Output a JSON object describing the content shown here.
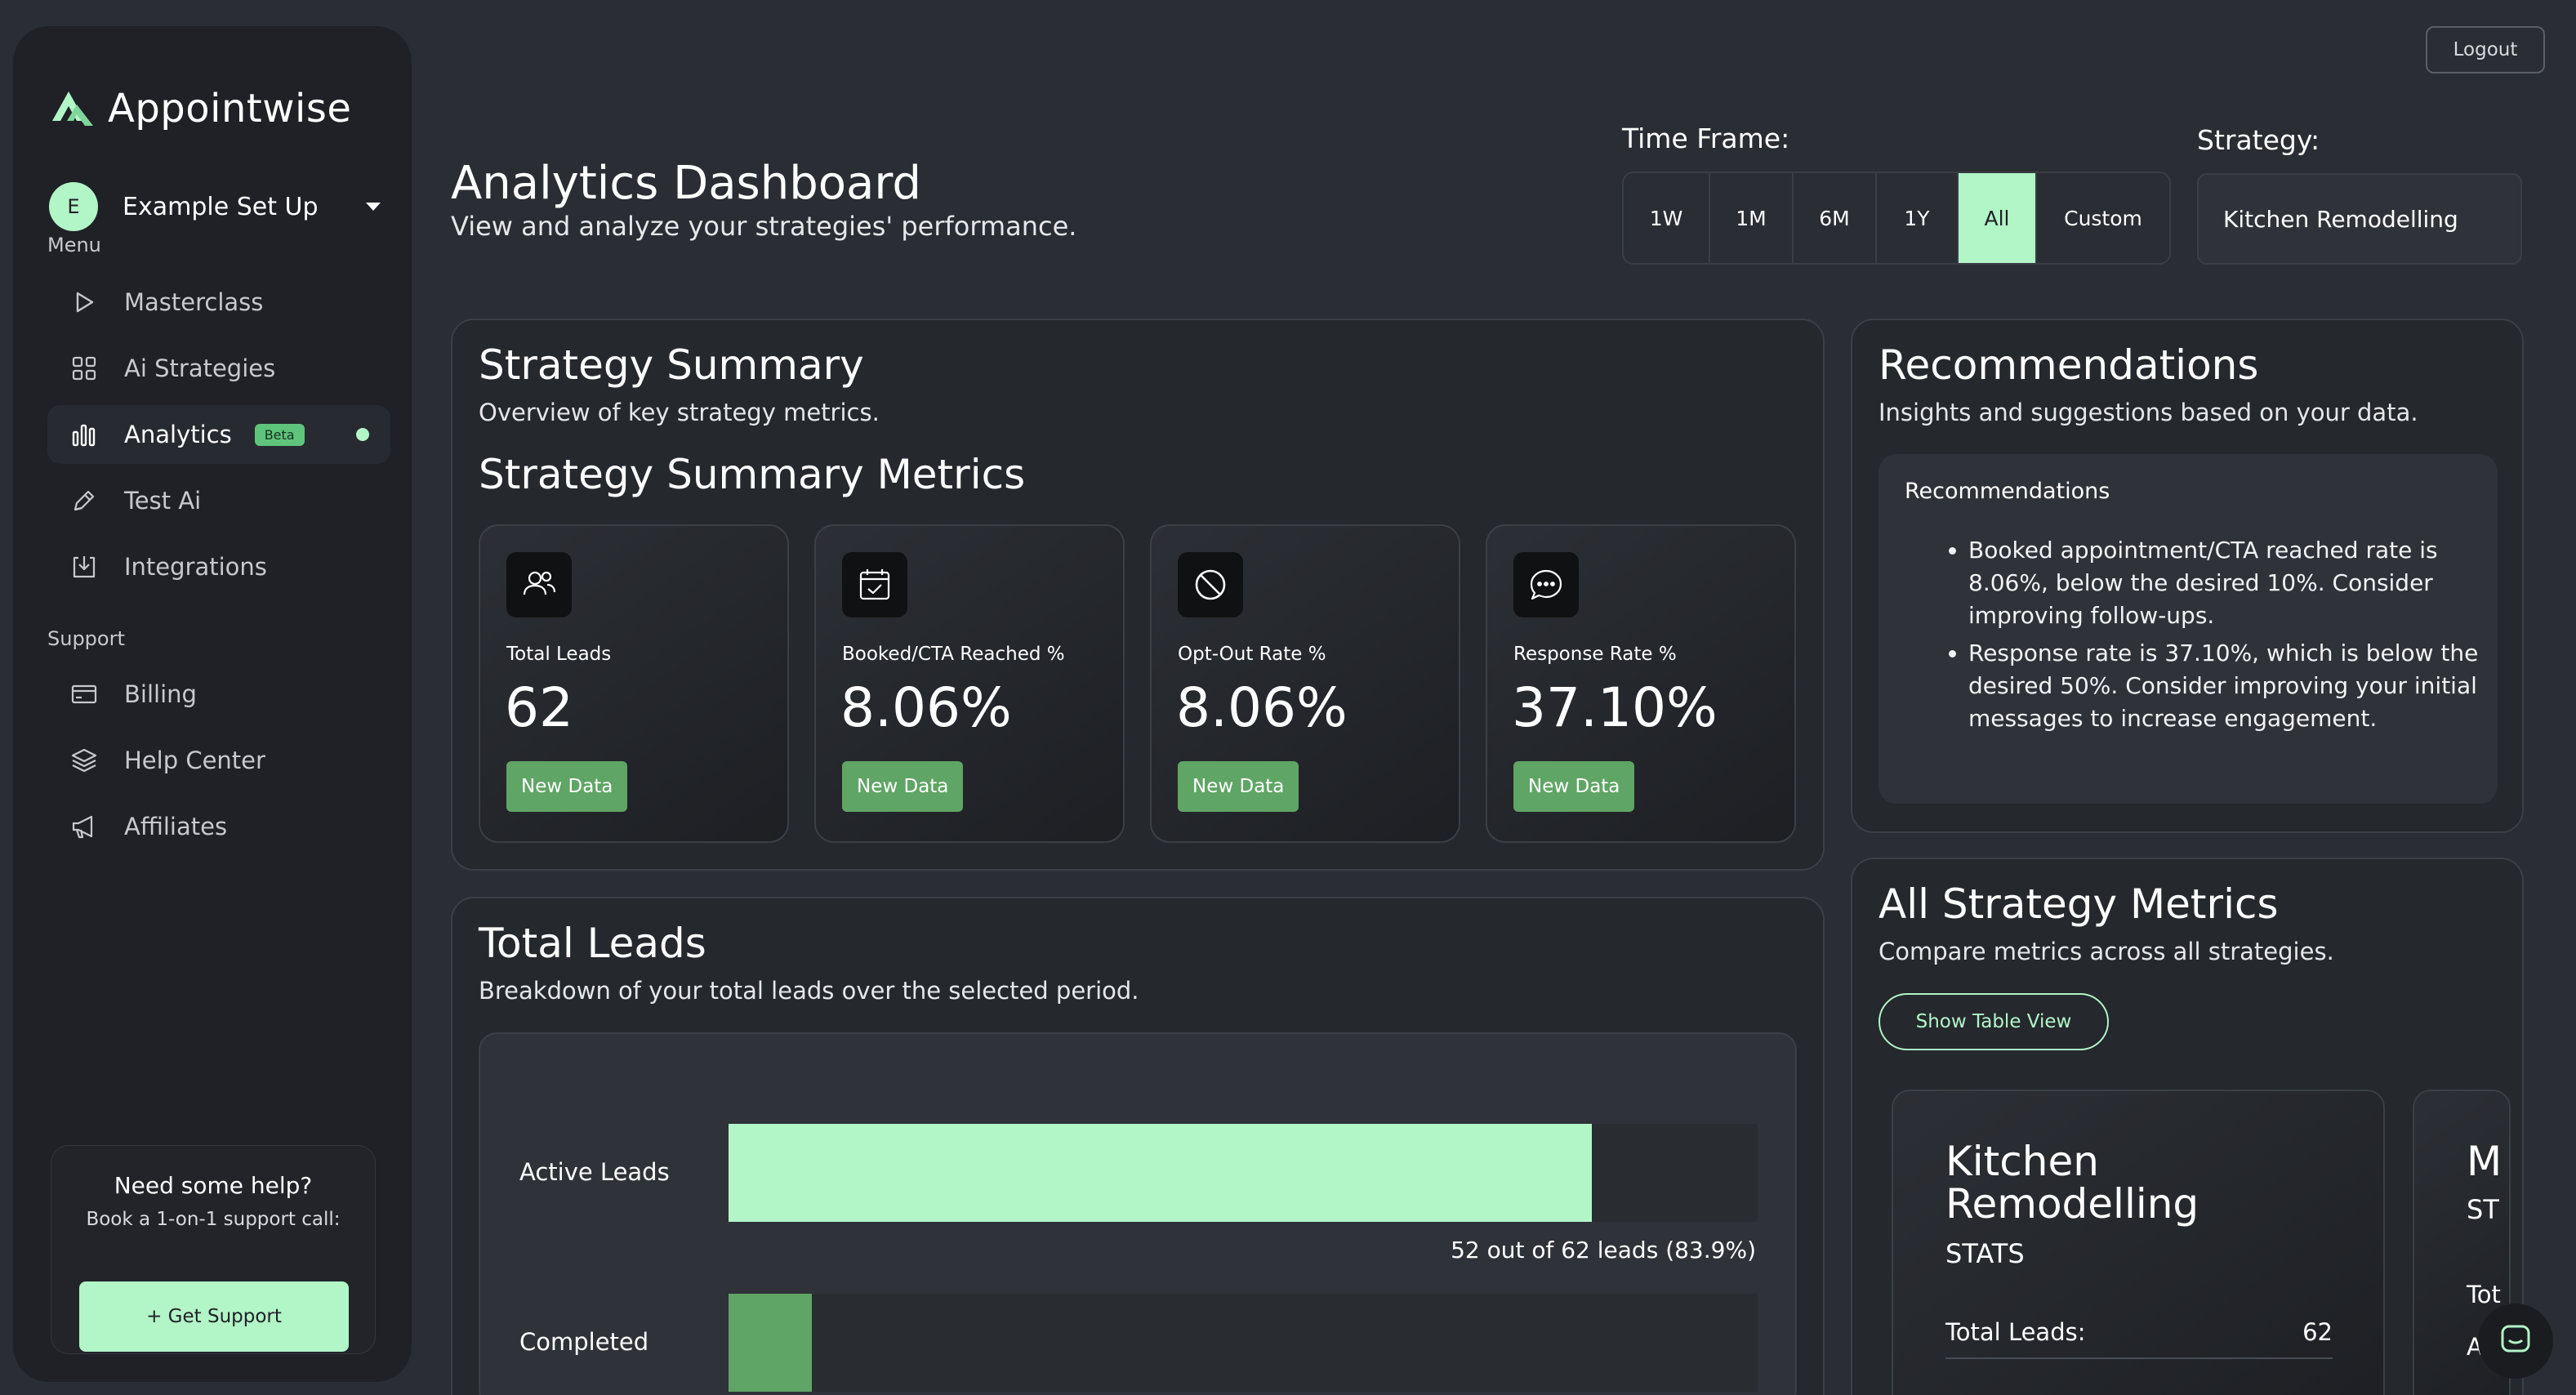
{
  "brand": {
    "name": "Appointwise"
  },
  "account": {
    "initial": "E",
    "name": "Example Set Up"
  },
  "sidebar": {
    "menu_label": "Menu",
    "menu_items": [
      {
        "label": "Masterclass",
        "icon": "play-icon"
      },
      {
        "label": "Ai Strategies",
        "icon": "grid-icon"
      },
      {
        "label": "Analytics",
        "icon": "bar-chart-icon",
        "badge": "Beta",
        "active": true
      },
      {
        "label": "Test Ai",
        "icon": "pencil-icon"
      },
      {
        "label": "Integrations",
        "icon": "download-box-icon"
      }
    ],
    "support_label": "Support",
    "support_items": [
      {
        "label": "Billing",
        "icon": "credit-card-icon"
      },
      {
        "label": "Help Center",
        "icon": "layers-icon"
      },
      {
        "label": "Affiliates",
        "icon": "megaphone-icon"
      }
    ],
    "help": {
      "title": "Need some help?",
      "subtitle": "Book a 1-on-1 support call:",
      "button": "+ Get Support"
    }
  },
  "header": {
    "logout": "Logout",
    "title": "Analytics Dashboard",
    "subtitle": "View and analyze your strategies' performance.",
    "timeframe_label": "Time Frame:",
    "timeframe_options": [
      "1W",
      "1M",
      "6M",
      "1Y",
      "All",
      "Custom"
    ],
    "timeframe_selected": "All",
    "strategy_label": "Strategy:",
    "strategy_value": "Kitchen Remodelling"
  },
  "summary": {
    "title": "Strategy Summary",
    "subtitle": "Overview of key strategy metrics.",
    "metrics_title": "Strategy Summary Metrics",
    "metrics": [
      {
        "label": "Total Leads",
        "value": "62",
        "badge": "New Data",
        "icon": "users-icon"
      },
      {
        "label": "Booked/CTA Reached %",
        "value": "8.06%",
        "badge": "New Data",
        "icon": "calendar-check-icon"
      },
      {
        "label": "Opt-Out Rate %",
        "value": "8.06%",
        "badge": "New Data",
        "icon": "ban-icon"
      },
      {
        "label": "Response Rate %",
        "value": "37.10%",
        "badge": "New Data",
        "icon": "message-icon"
      }
    ]
  },
  "recommendations": {
    "title": "Recommendations",
    "subtitle": "Insights and suggestions based on your data.",
    "box_title": "Recommendations",
    "items": [
      "Booked appointment/CTA reached rate is 8.06%, below the desired 10%. Consider improving follow-ups.",
      "Response rate is 37.10%, which is below the desired 50%. Consider improving your initial messages to increase engagement."
    ]
  },
  "leads": {
    "title": "Total Leads",
    "subtitle": "Breakdown of your total leads over the selected period."
  },
  "chart_data": {
    "type": "bar",
    "orientation": "horizontal",
    "categories": [
      "Active Leads",
      "Completed"
    ],
    "values": [
      52,
      5
    ],
    "total": 62,
    "captions": [
      "52 out of 62 leads (83.9%)",
      ""
    ],
    "colors": [
      "#b2f5c7",
      "#5fa565"
    ]
  },
  "all_metrics": {
    "title": "All Strategy Metrics",
    "subtitle": "Compare metrics across all strategies.",
    "table_button": "Show Table View",
    "cards": [
      {
        "name": "Kitchen Remodelling",
        "stats_label": "STATS",
        "row_label": "Total Leads:",
        "row_value": "62"
      },
      {
        "name": "M",
        "stats_label": "ST",
        "row_label": "Tot",
        "row_value": ""
      }
    ],
    "card2_row2": "Ac"
  },
  "colors": {
    "accent": "#b2f5c7",
    "badge": "#5fa565",
    "background": "#2a2d33",
    "sidebar": "#1f2126"
  }
}
